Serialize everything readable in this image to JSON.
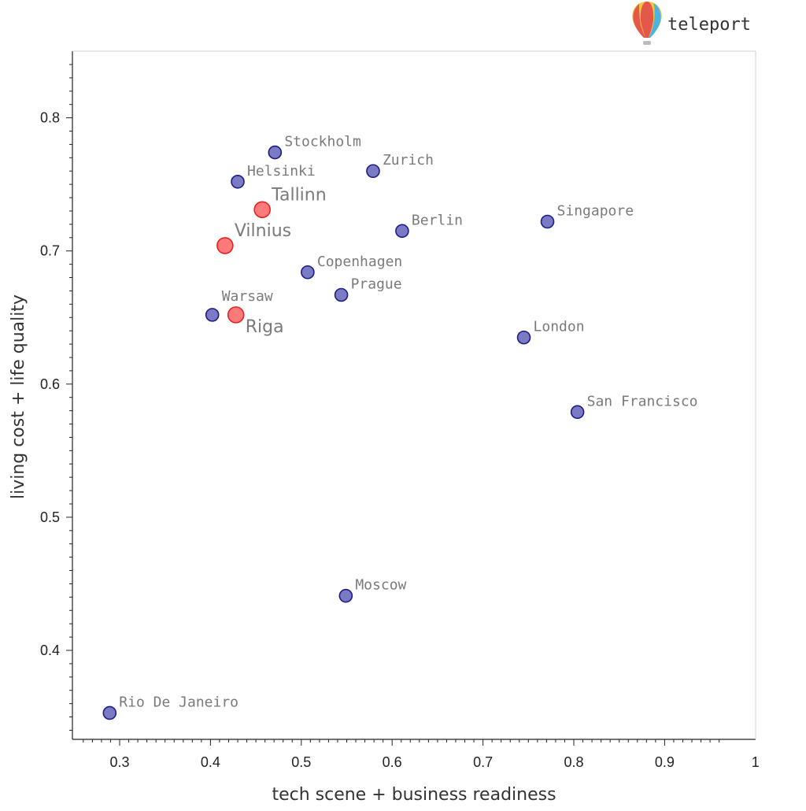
{
  "brand": {
    "name": "teleport",
    "icon": "hot-air-balloon-icon"
  },
  "colors": {
    "point_fill": "#7b7bc4",
    "point_stroke": "#1b1b8a",
    "highlight_fill": "#ff7a7a",
    "highlight_stroke": "#e52222",
    "label": "#7a7a7a",
    "highlight_label": "#f07878"
  },
  "chart_data": {
    "type": "scatter",
    "title": "",
    "xlabel": "tech scene + business readiness",
    "ylabel": "living cost + life quality",
    "xlim": [
      0.25,
      1.0
    ],
    "ylim": [
      0.335,
      0.85
    ],
    "xticks": [
      0.3,
      0.4,
      0.5,
      0.6,
      0.7,
      0.8,
      0.9,
      1
    ],
    "xtick_labels": [
      "0.3",
      "0.4",
      "0.5",
      "0.6",
      "0.7",
      "0.8",
      "0.9",
      "1"
    ],
    "yticks": [
      0.4,
      0.5,
      0.6,
      0.7,
      0.8
    ],
    "ytick_labels": [
      "0.4",
      "0.5",
      "0.6",
      "0.7",
      "0.8"
    ],
    "grid": false,
    "points": [
      {
        "label": "Stockholm",
        "x": 0.471,
        "y": 0.774,
        "highlight": false
      },
      {
        "label": "Zurich",
        "x": 0.579,
        "y": 0.76,
        "highlight": false
      },
      {
        "label": "Helsinki",
        "x": 0.43,
        "y": 0.752,
        "highlight": false
      },
      {
        "label": "Tallinn",
        "x": 0.457,
        "y": 0.731,
        "highlight": true
      },
      {
        "label": "Berlin",
        "x": 0.611,
        "y": 0.715,
        "highlight": false
      },
      {
        "label": "Singapore",
        "x": 0.771,
        "y": 0.722,
        "highlight": false
      },
      {
        "label": "Vilnius",
        "x": 0.416,
        "y": 0.704,
        "highlight": true
      },
      {
        "label": "Copenhagen",
        "x": 0.507,
        "y": 0.684,
        "highlight": false
      },
      {
        "label": "Prague",
        "x": 0.544,
        "y": 0.667,
        "highlight": false
      },
      {
        "label": "Warsaw",
        "x": 0.402,
        "y": 0.652,
        "highlight": false
      },
      {
        "label": "Riga",
        "x": 0.428,
        "y": 0.652,
        "highlight": true
      },
      {
        "label": "London",
        "x": 0.745,
        "y": 0.635,
        "highlight": false
      },
      {
        "label": "San Francisco",
        "x": 0.804,
        "y": 0.579,
        "highlight": false
      },
      {
        "label": "Moscow",
        "x": 0.549,
        "y": 0.441,
        "highlight": false
      },
      {
        "label": "Rio De Janeiro",
        "x": 0.289,
        "y": 0.353,
        "highlight": false
      }
    ]
  }
}
